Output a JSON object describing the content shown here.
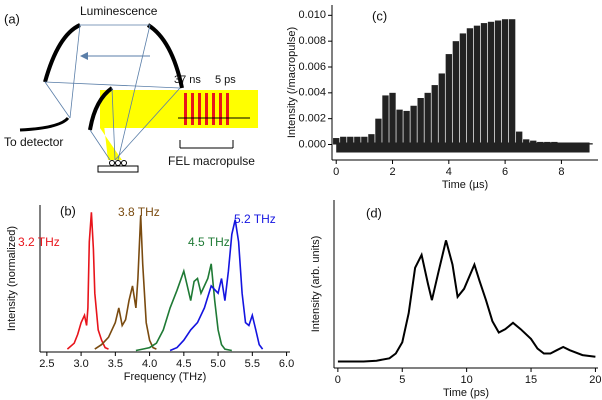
{
  "diagram": {
    "label": "(a)",
    "luminescence": "Luminescence",
    "pulse_spacing": "37 ns",
    "pulse_width": "5 ps",
    "detector": "To detector",
    "macropulse": "FEL macropulse"
  },
  "chart_data": [
    {
      "type": "line",
      "panel_label": "(b)",
      "xlabel": "Frequency (THz)",
      "ylabel": "Intensity (normalized)",
      "xlim": [
        2.4,
        6.05
      ],
      "ylim": [
        0,
        1
      ],
      "xticks": [
        2.5,
        {
          "value": 3,
          "label": "3.0"
        },
        3.5,
        {
          "value": 4,
          "label": "4.0"
        },
        4.5,
        {
          "value": 5,
          "label": "5.0"
        },
        5.5,
        {
          "value": 6,
          "label": "6.0"
        }
      ],
      "series": [
        {
          "name": "3.2 THz",
          "color": "#e8141b",
          "x": [
            2.8,
            2.9,
            2.95,
            3.0,
            3.05,
            3.08,
            3.1,
            3.12,
            3.15,
            3.18,
            3.2,
            3.25,
            3.3,
            3.35,
            3.4
          ],
          "values": [
            0.02,
            0.06,
            0.12,
            0.2,
            0.25,
            0.18,
            0.3,
            0.75,
            0.95,
            0.7,
            0.4,
            0.15,
            0.08,
            0.03,
            0.02
          ]
        },
        {
          "name": "3.8 THz",
          "color": "#7a4b10",
          "x": [
            3.2,
            3.3,
            3.4,
            3.5,
            3.55,
            3.6,
            3.65,
            3.7,
            3.75,
            3.8,
            3.83,
            3.87,
            3.9,
            3.95,
            4.0,
            4.05,
            4.1
          ],
          "values": [
            0.02,
            0.05,
            0.1,
            0.2,
            0.3,
            0.18,
            0.22,
            0.35,
            0.45,
            0.3,
            0.5,
            0.93,
            0.6,
            0.2,
            0.08,
            0.03,
            0.02
          ]
        },
        {
          "name": "4.5 THz",
          "color": "#1f7a35",
          "x": [
            3.8,
            3.9,
            4.0,
            4.1,
            4.2,
            4.3,
            4.4,
            4.5,
            4.55,
            4.6,
            4.65,
            4.7,
            4.75,
            4.8,
            4.85,
            4.9,
            4.95,
            5.0,
            5.05,
            5.1,
            5.2
          ],
          "values": [
            0.01,
            0.02,
            0.03,
            0.06,
            0.15,
            0.3,
            0.42,
            0.55,
            0.45,
            0.35,
            0.48,
            0.5,
            0.4,
            0.45,
            0.5,
            0.6,
            0.35,
            0.15,
            0.05,
            0.02,
            0.01
          ]
        },
        {
          "name": "5.2 THz",
          "color": "#1414e0",
          "x": [
            4.3,
            4.4,
            4.5,
            4.6,
            4.7,
            4.8,
            4.9,
            5.0,
            5.05,
            5.1,
            5.15,
            5.2,
            5.25,
            5.3,
            5.35,
            5.4,
            5.45,
            5.5,
            5.55,
            5.6,
            5.65
          ],
          "values": [
            0.01,
            0.03,
            0.08,
            0.15,
            0.2,
            0.3,
            0.45,
            0.4,
            0.5,
            0.35,
            0.55,
            0.8,
            0.9,
            0.75,
            0.4,
            0.2,
            0.18,
            0.25,
            0.15,
            0.05,
            0.02
          ]
        }
      ]
    },
    {
      "type": "bar",
      "panel_label": "(c)",
      "xlabel": "Time (µs)",
      "ylabel": "Intensity (/macropulse)",
      "color": "#222222",
      "xlim": [
        -0.15,
        9.3
      ],
      "ylim": [
        -0.0012,
        0.0108
      ],
      "xticks": [
        0,
        2,
        4,
        6,
        8
      ],
      "yticks": [
        {
          "value": 0,
          "label": "0.000"
        },
        {
          "value": 0.002,
          "label": "0.002"
        },
        {
          "value": 0.004,
          "label": "0.004"
        },
        {
          "value": 0.006,
          "label": "0.006"
        },
        {
          "value": 0.008,
          "label": "0.008"
        },
        {
          "value": 0.01,
          "label": "0.010"
        }
      ],
      "x": [
        0,
        0.25,
        0.5,
        0.75,
        1.0,
        1.25,
        1.5,
        1.75,
        2.0,
        2.25,
        2.5,
        2.75,
        3.0,
        3.25,
        3.5,
        3.75,
        4.0,
        4.25,
        4.5,
        4.75,
        5.0,
        5.25,
        5.5,
        5.75,
        6.0,
        6.25,
        6.5,
        6.75,
        7.0,
        7.25,
        7.5,
        7.75,
        8.0,
        8.25,
        8.5,
        8.75,
        9.0
      ],
      "values": [
        0.0005,
        0.0006,
        0.0006,
        0.0006,
        0.0006,
        0.0008,
        0.002,
        0.0038,
        0.004,
        0.0027,
        0.0026,
        0.003,
        0.0036,
        0.004,
        0.0046,
        0.0055,
        0.007,
        0.008,
        0.0086,
        0.009,
        0.0092,
        0.0094,
        0.0095,
        0.0096,
        0.0097,
        0.0097,
        0.001,
        0.0004,
        0.0003,
        0.0002,
        0.0002,
        0.0002,
        0.0001,
        0.0001,
        0.0001,
        0.0001,
        0.0001
      ]
    },
    {
      "type": "line",
      "panel_label": "(d)",
      "xlabel": "Time (ps)",
      "ylabel": "Intensity (arb. units)",
      "xlim": [
        -0.3,
        20.2
      ],
      "ylim": [
        -0.04,
        1
      ],
      "xticks": [
        0,
        5,
        10,
        15,
        20
      ],
      "series": [
        {
          "color": "#000000",
          "x": [
            0,
            2,
            3,
            4,
            4.5,
            5,
            5.5,
            6,
            6.5,
            7,
            7.3,
            7.8,
            8.4,
            8.9,
            9.3,
            9.8,
            10.6,
            11,
            11.5,
            12,
            12.5,
            13,
            13.6,
            14.2,
            15,
            15.5,
            16,
            16.5,
            17,
            17.5,
            18,
            19,
            20
          ],
          "values": [
            0,
            0,
            0.005,
            0.02,
            0.05,
            0.12,
            0.3,
            0.58,
            0.66,
            0.48,
            0.38,
            0.55,
            0.75,
            0.6,
            0.4,
            0.45,
            0.6,
            0.5,
            0.38,
            0.25,
            0.18,
            0.2,
            0.24,
            0.2,
            0.14,
            0.08,
            0.05,
            0.05,
            0.07,
            0.09,
            0.07,
            0.04,
            0.03
          ]
        }
      ]
    }
  ]
}
